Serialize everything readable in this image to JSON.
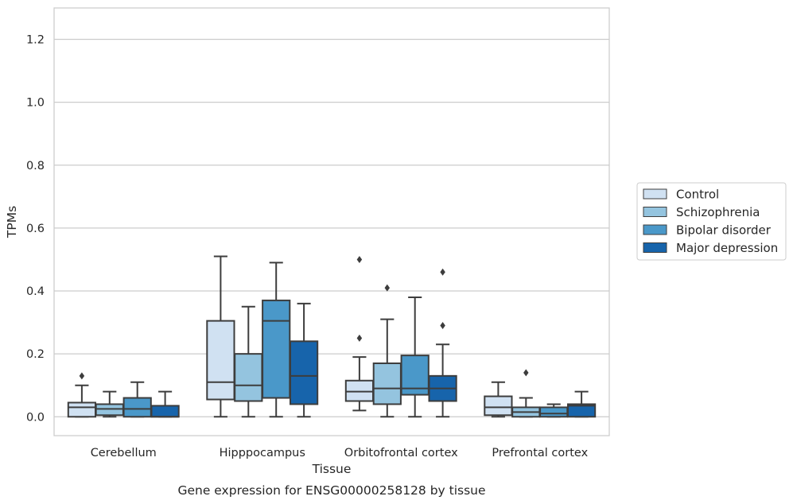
{
  "chart_data": {
    "type": "boxplot",
    "caption": "Gene expression for ENSG00000258128 by tissue",
    "xlabel": "Tissue",
    "ylabel": "TPMs",
    "ylim": [
      -0.06,
      1.3
    ],
    "yticks": [
      "0.0",
      "0.2",
      "0.4",
      "0.6",
      "0.8",
      "1.0",
      "1.2"
    ],
    "categories": [
      "Cerebellum",
      "Hipppocampus",
      "Orbitofrontal cortex",
      "Prefrontal cortex"
    ],
    "grid": "horizontal",
    "legend_position": "right",
    "series": [
      {
        "name": "Control",
        "color": "#d0e1f2",
        "boxes": [
          {
            "min": 0.0,
            "q1": 0.0,
            "median": 0.03,
            "q3": 0.045,
            "max": 0.1,
            "outliers": [
              0.13
            ]
          },
          {
            "min": 0.0,
            "q1": 0.055,
            "median": 0.11,
            "q3": 0.305,
            "max": 0.51,
            "outliers": []
          },
          {
            "min": 0.02,
            "q1": 0.05,
            "median": 0.08,
            "q3": 0.115,
            "max": 0.19,
            "outliers": [
              0.25,
              0.5
            ]
          },
          {
            "min": 0.0,
            "q1": 0.005,
            "median": 0.03,
            "q3": 0.065,
            "max": 0.11,
            "outliers": []
          }
        ]
      },
      {
        "name": "Schizophrenia",
        "color": "#94c4df",
        "boxes": [
          {
            "min": 0.0,
            "q1": 0.005,
            "median": 0.025,
            "q3": 0.04,
            "max": 0.08,
            "outliers": []
          },
          {
            "min": 0.0,
            "q1": 0.05,
            "median": 0.1,
            "q3": 0.2,
            "max": 0.35,
            "outliers": []
          },
          {
            "min": 0.0,
            "q1": 0.04,
            "median": 0.09,
            "q3": 0.17,
            "max": 0.31,
            "outliers": [
              0.41
            ]
          },
          {
            "min": 0.0,
            "q1": 0.0,
            "median": 0.015,
            "q3": 0.03,
            "max": 0.06,
            "outliers": [
              0.14
            ]
          }
        ]
      },
      {
        "name": "Bipolar disorder",
        "color": "#4a98c9",
        "boxes": [
          {
            "min": 0.0,
            "q1": 0.0,
            "median": 0.025,
            "q3": 0.06,
            "max": 0.11,
            "outliers": []
          },
          {
            "min": 0.0,
            "q1": 0.06,
            "median": 0.305,
            "q3": 0.37,
            "max": 0.49,
            "outliers": []
          },
          {
            "min": 0.0,
            "q1": 0.07,
            "median": 0.09,
            "q3": 0.195,
            "max": 0.38,
            "outliers": []
          },
          {
            "min": 0.0,
            "q1": 0.0,
            "median": 0.01,
            "q3": 0.03,
            "max": 0.04,
            "outliers": []
          }
        ]
      },
      {
        "name": "Major depression",
        "color": "#1764ab",
        "boxes": [
          {
            "min": 0.0,
            "q1": 0.0,
            "median": 0.0,
            "q3": 0.035,
            "max": 0.08,
            "outliers": []
          },
          {
            "min": 0.0,
            "q1": 0.04,
            "median": 0.13,
            "q3": 0.24,
            "max": 0.36,
            "outliers": []
          },
          {
            "min": 0.0,
            "q1": 0.05,
            "median": 0.09,
            "q3": 0.13,
            "max": 0.23,
            "outliers": [
              0.29,
              0.46
            ]
          },
          {
            "min": 0.0,
            "q1": 0.0,
            "median": 0.035,
            "q3": 0.04,
            "max": 0.08,
            "outliers": []
          }
        ]
      }
    ]
  }
}
